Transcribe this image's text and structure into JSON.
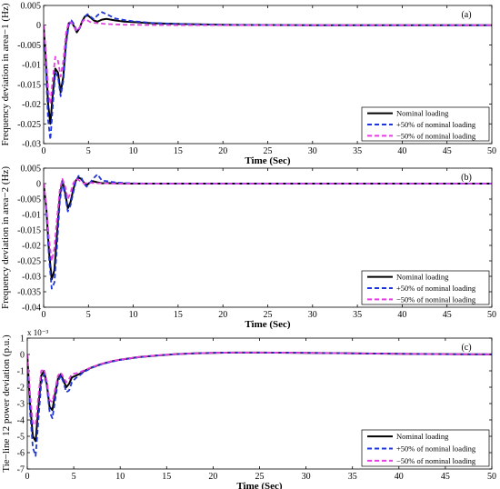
{
  "chart_data": [
    {
      "type": "line",
      "panel_label": "(a)",
      "xlabel": "Time (Sec)",
      "ylabel": "Frequency deviation in area−1 (Hz)",
      "xlim": [
        0,
        50
      ],
      "ylim": [
        -0.03,
        0.005
      ],
      "xticks": [
        "0",
        "5",
        "10",
        "15",
        "20",
        "25",
        "30",
        "35",
        "40",
        "45",
        "50"
      ],
      "yticks": [
        "0.005",
        "0",
        "-0.005",
        "-0.01",
        "-0.015",
        "-0.02",
        "-0.025",
        "-0.03"
      ],
      "ytick_values": [
        0.005,
        0,
        -0.005,
        -0.01,
        -0.015,
        -0.02,
        -0.025,
        -0.03
      ],
      "multiplier": "",
      "legend_position": "lower-right",
      "series": [
        {
          "name": "Nominal loading",
          "color": "#000000",
          "dash": "solid",
          "x": [
            0,
            0.25,
            0.5,
            0.75,
            1.0,
            1.3,
            1.6,
            1.9,
            2.2,
            2.5,
            2.8,
            3.1,
            3.4,
            3.7,
            4.0,
            4.3,
            4.6,
            4.9,
            5.2,
            5.6,
            6.0,
            6.5,
            7.0,
            8.0,
            9.0,
            10,
            12,
            15,
            20,
            25,
            30,
            50
          ],
          "y": [
            0,
            -0.009,
            -0.02,
            -0.025,
            -0.018,
            -0.011,
            -0.012,
            -0.017,
            -0.013,
            -0.004,
            0.0005,
            0.0008,
            -0.0003,
            -0.0018,
            -0.0008,
            0.001,
            0.0022,
            0.0025,
            0.002,
            0.0012,
            0.0009,
            0.0014,
            0.0016,
            0.0012,
            0.0009,
            0.0008,
            0.0005,
            0.0003,
            0.0001,
            5e-05,
            0,
            0
          ]
        },
        {
          "name": "+50% of nominal loading",
          "color": "#1f35d6",
          "dash": "dashed",
          "x": [
            0,
            0.25,
            0.5,
            0.75,
            1.0,
            1.3,
            1.6,
            1.9,
            2.2,
            2.5,
            2.8,
            3.1,
            3.4,
            3.7,
            4.0,
            4.3,
            4.6,
            4.9,
            5.2,
            5.6,
            6.0,
            6.5,
            7.0,
            8.0,
            9.0,
            10,
            12,
            15,
            20,
            25,
            30,
            50
          ],
          "y": [
            0,
            -0.011,
            -0.024,
            -0.029,
            -0.021,
            -0.012,
            -0.013,
            -0.018,
            -0.014,
            -0.005,
            0.0,
            0.0012,
            0.0002,
            -0.0015,
            -0.0009,
            0.0008,
            0.0022,
            0.0028,
            0.0022,
            0.0015,
            0.0025,
            0.0033,
            0.0028,
            0.0017,
            0.0013,
            0.001,
            0.0006,
            0.0003,
            0.0001,
            5e-05,
            0,
            0
          ]
        },
        {
          "name": "−50% of nominal loading",
          "color": "#e43fe0",
          "dash": "dashed",
          "x": [
            0,
            0.25,
            0.5,
            0.75,
            1.0,
            1.3,
            1.6,
            1.9,
            2.2,
            2.5,
            2.8,
            3.1,
            3.4,
            3.7,
            4.0,
            4.3,
            4.6,
            4.9,
            5.2,
            5.6,
            6.0,
            6.5,
            7.0,
            8.0,
            9.0,
            10,
            12,
            15,
            20,
            25,
            30,
            50
          ],
          "y": [
            0,
            -0.007,
            -0.016,
            -0.02,
            -0.014,
            -0.008,
            -0.009,
            -0.013,
            -0.009,
            -0.002,
            0.0008,
            0.0007,
            -0.0005,
            -0.0015,
            -0.0006,
            0.0008,
            0.0015,
            0.0012,
            0.0008,
            0.0006,
            0.0005,
            0.0004,
            0.0003,
            0.0002,
            0.0001,
            0.0001,
            5e-05,
            0,
            0,
            0,
            0,
            0
          ]
        }
      ]
    },
    {
      "type": "line",
      "panel_label": "(b)",
      "xlabel": "Time (Sec)",
      "ylabel": "Frequency deviation in area−2 (Hz)",
      "xlim": [
        0,
        50
      ],
      "ylim": [
        -0.04,
        0.005
      ],
      "xticks": [
        "0",
        "5",
        "10",
        "15",
        "20",
        "25",
        "30",
        "35",
        "40",
        "45",
        "50"
      ],
      "yticks": [
        "0.005",
        "0",
        "-0.005",
        "-0.01",
        "-0.015",
        "-0.02",
        "-0.025",
        "-0.03",
        "-0.035",
        "-0.04"
      ],
      "ytick_values": [
        0.005,
        0,
        -0.005,
        -0.01,
        -0.015,
        -0.02,
        -0.025,
        -0.03,
        -0.035,
        -0.04
      ],
      "multiplier": "",
      "legend_position": "lower-right",
      "series": [
        {
          "name": "Nominal loading",
          "color": "#000000",
          "dash": "solid",
          "x": [
            0,
            0.3,
            0.6,
            0.9,
            1.2,
            1.5,
            1.8,
            2.1,
            2.4,
            2.7,
            3.0,
            3.3,
            3.6,
            3.9,
            4.2,
            4.5,
            4.8,
            5.1,
            5.5,
            6.0,
            6.5,
            7.0,
            8.0,
            9.0,
            10,
            12,
            15,
            20,
            50
          ],
          "y": [
            0,
            -0.008,
            -0.022,
            -0.031,
            -0.028,
            -0.016,
            -0.004,
            0.001,
            -0.003,
            -0.008,
            -0.006,
            -0.002,
            0.001,
            0.002,
            0.0015,
            0.0003,
            -0.0005,
            0.0002,
            0.0008,
            0.0004,
            0.0001,
            0.0002,
            0.0001,
            5e-05,
            0,
            0,
            0,
            0,
            0
          ]
        },
        {
          "name": "+50% of nominal loading",
          "color": "#1f35d6",
          "dash": "dashed",
          "x": [
            0,
            0.3,
            0.6,
            0.9,
            1.2,
            1.5,
            1.8,
            2.1,
            2.4,
            2.7,
            3.0,
            3.3,
            3.6,
            3.9,
            4.2,
            4.5,
            4.8,
            5.1,
            5.5,
            6.0,
            6.5,
            7.0,
            8.0,
            9.0,
            10,
            12,
            15,
            20,
            50
          ],
          "y": [
            0,
            -0.009,
            -0.024,
            -0.034,
            -0.032,
            -0.02,
            -0.006,
            0.0005,
            -0.004,
            -0.009,
            -0.007,
            -0.003,
            0.0008,
            0.0025,
            0.002,
            0.0,
            -0.001,
            0.0,
            0.0015,
            0.003,
            0.001,
            0.0008,
            0.0004,
            0.0002,
            0.0001,
            0,
            0,
            0,
            0
          ]
        },
        {
          "name": "−50% of nominal loading",
          "color": "#e43fe0",
          "dash": "dashed",
          "x": [
            0,
            0.3,
            0.6,
            0.9,
            1.2,
            1.5,
            1.8,
            2.1,
            2.4,
            2.7,
            3.0,
            3.3,
            3.6,
            3.9,
            4.2,
            4.5,
            4.8,
            5.1,
            5.5,
            6.0,
            6.5,
            7.0,
            8.0,
            9.0,
            10,
            12,
            15,
            20,
            50
          ],
          "y": [
            0,
            -0.007,
            -0.018,
            -0.025,
            -0.021,
            -0.011,
            -0.002,
            0.0015,
            -0.001,
            -0.005,
            -0.003,
            0.0,
            0.0015,
            0.0012,
            0.0005,
            0.0,
            0.0002,
            0.0003,
            0.0002,
            0.0001,
            0.0001,
            0.0001,
            0,
            0,
            0,
            0,
            0,
            0,
            0
          ]
        }
      ]
    },
    {
      "type": "line",
      "panel_label": "(c)",
      "xlabel": "Time (Sec)",
      "ylabel": "Tie−line 12 power deviation (p.u.)",
      "xlim": [
        0,
        50
      ],
      "ylim": [
        -7,
        1
      ],
      "xticks": [
        "0",
        "5",
        "10",
        "15",
        "20",
        "25",
        "30",
        "35",
        "40",
        "45",
        "50"
      ],
      "yticks": [
        "1",
        "0",
        "-1",
        "-2",
        "-3",
        "-4",
        "-5",
        "-6",
        "-7"
      ],
      "ytick_values": [
        1,
        0,
        -1,
        -2,
        -3,
        -4,
        -5,
        -6,
        -7
      ],
      "multiplier": "x 10⁻³",
      "legend_position": "lower-right",
      "series": [
        {
          "name": "Nominal loading",
          "color": "#000000",
          "dash": "solid",
          "x": [
            0,
            0.3,
            0.6,
            0.9,
            1.2,
            1.5,
            1.8,
            2.1,
            2.4,
            2.7,
            3.0,
            3.3,
            3.6,
            3.9,
            4.2,
            4.5,
            4.8,
            5.2,
            5.6,
            6.0,
            6.5,
            7,
            8,
            9,
            10,
            12,
            14,
            16,
            18,
            20,
            22,
            25,
            30,
            35,
            40,
            45,
            50
          ],
          "y": [
            0,
            -3.0,
            -5.0,
            -5.3,
            -3.2,
            -1.3,
            -1.0,
            -1.8,
            -3.2,
            -3.4,
            -2.4,
            -1.5,
            -1.2,
            -1.6,
            -2.0,
            -1.8,
            -1.4,
            -1.3,
            -1.2,
            -1.05,
            -0.9,
            -0.78,
            -0.58,
            -0.43,
            -0.32,
            -0.16,
            -0.06,
            0.02,
            0.07,
            0.1,
            0.12,
            0.12,
            0.1,
            0.07,
            0.04,
            0.02,
            0.01
          ]
        },
        {
          "name": "+50% of nominal loading",
          "color": "#1f35d6",
          "dash": "dashed",
          "x": [
            0,
            0.3,
            0.6,
            0.9,
            1.2,
            1.5,
            1.8,
            2.1,
            2.4,
            2.7,
            3.0,
            3.3,
            3.6,
            3.9,
            4.2,
            4.5,
            4.8,
            5.2,
            5.6,
            6.0,
            6.5,
            7,
            8,
            9,
            10,
            12,
            14,
            16,
            18,
            20,
            22,
            25,
            30,
            35,
            40,
            45,
            50
          ],
          "y": [
            0,
            -3.5,
            -5.7,
            -6.2,
            -4.0,
            -1.8,
            -1.2,
            -1.9,
            -3.5,
            -3.9,
            -2.8,
            -1.7,
            -1.3,
            -1.7,
            -2.3,
            -2.2,
            -1.7,
            -1.45,
            -1.3,
            -1.1,
            -0.95,
            -0.8,
            -0.6,
            -0.45,
            -0.33,
            -0.17,
            -0.06,
            0.02,
            0.07,
            0.1,
            0.12,
            0.12,
            0.1,
            0.07,
            0.04,
            0.02,
            0.01
          ]
        },
        {
          "name": "−50% of nominal loading",
          "color": "#e43fe0",
          "dash": "dashed",
          "x": [
            0,
            0.3,
            0.6,
            0.9,
            1.2,
            1.5,
            1.8,
            2.1,
            2.4,
            2.7,
            3.0,
            3.3,
            3.6,
            3.9,
            4.2,
            4.5,
            4.8,
            5.2,
            5.6,
            6.0,
            6.5,
            7,
            8,
            9,
            10,
            12,
            14,
            16,
            18,
            20,
            22,
            25,
            30,
            35,
            40,
            45,
            50
          ],
          "y": [
            0,
            -2.4,
            -4.2,
            -4.3,
            -2.5,
            -1.0,
            -0.9,
            -1.6,
            -2.8,
            -2.9,
            -2.1,
            -1.3,
            -1.1,
            -1.4,
            -1.7,
            -1.5,
            -1.2,
            -1.15,
            -1.1,
            -1.0,
            -0.88,
            -0.76,
            -0.56,
            -0.42,
            -0.31,
            -0.15,
            -0.05,
            0.02,
            0.07,
            0.1,
            0.12,
            0.12,
            0.1,
            0.07,
            0.04,
            0.02,
            0.01
          ]
        }
      ]
    }
  ]
}
